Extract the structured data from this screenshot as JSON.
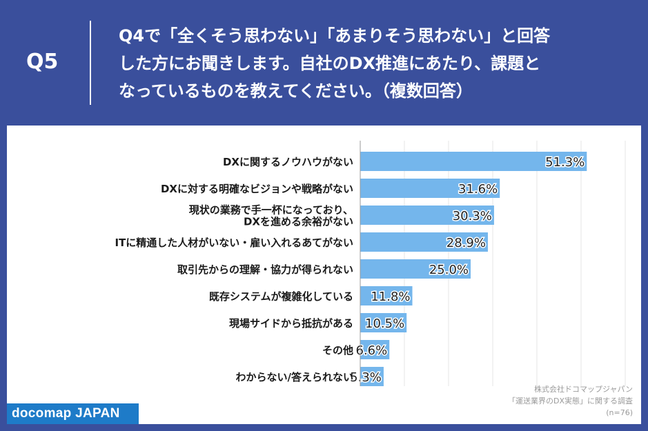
{
  "header": {
    "question_label": "Q5",
    "question_text": "Q4で「全くそう思わない」「あまりそう思わない」と回答\nした方にお聞きします。自社のDX推進にあたり、課題と\nなっているものを教えてください。（複数回答）"
  },
  "footer": {
    "brand": "docomap JAPAN",
    "source_line1": "株式会社ドコマップジャパン",
    "source_line2": "「運送業界のDX実態」に関する調査",
    "sample_size": "(n=76)"
  },
  "colors": {
    "header_bg": "#3a4f9c",
    "bar": "#74b6ec",
    "brand_bg": "#1e7bc8"
  },
  "chart_data": {
    "type": "bar",
    "orientation": "horizontal",
    "categories": [
      [
        "DXに関するノウハウがない"
      ],
      [
        "DXに対する明確なビジョンや戦略がない"
      ],
      [
        "現状の業務で手一杯になっており、",
        "DXを進める余裕がない"
      ],
      [
        "ITに精通した人材がいない・雇い入れるあてがない"
      ],
      [
        "取引先からの理解・協力が得られない"
      ],
      [
        "既存システムが複雑化している"
      ],
      [
        "現場サイドから抵抗がある"
      ],
      [
        "その他"
      ],
      [
        "わからない/答えられない"
      ]
    ],
    "values": [
      51.3,
      31.6,
      30.3,
      28.9,
      25.0,
      11.8,
      10.5,
      6.6,
      5.3
    ],
    "value_labels": [
      "51.3%",
      "31.6%",
      "30.3%",
      "28.9%",
      "25.0%",
      "11.8%",
      "10.5%",
      "6.6%",
      "5.3%"
    ],
    "xlim": [
      0,
      60
    ],
    "grid": true,
    "unit": "%"
  }
}
